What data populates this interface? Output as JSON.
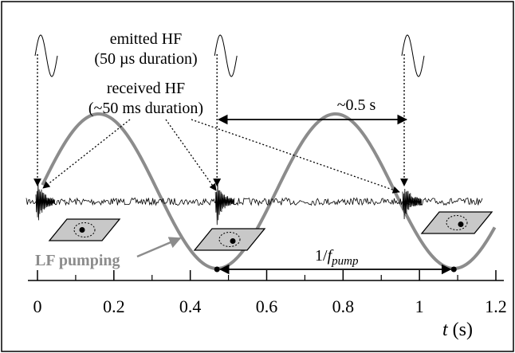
{
  "figure": {
    "emitted_label_line1": "emitted HF",
    "emitted_label_line2": "(50 µs duration)",
    "received_label_line1": "received HF",
    "received_label_line2": "(~50 ms duration)",
    "period_label": "~0.5 s",
    "pump_label": "LF pumping",
    "pump_period_prefix": "1/",
    "pump_period_f": "f",
    "pump_period_sub": "pump",
    "axis_var": "t",
    "axis_unit": " (s)"
  },
  "axis": {
    "x_min": 0,
    "x_max": 1.2,
    "ticks": [
      {
        "value": 0,
        "label": "0"
      },
      {
        "value": 0.2,
        "label": "0.2"
      },
      {
        "value": 0.4,
        "label": "0.4"
      },
      {
        "value": 0.6,
        "label": "0.6"
      },
      {
        "value": 0.8,
        "label": "0.8"
      },
      {
        "value": 1.0,
        "label": "1"
      },
      {
        "value": 1.2,
        "label": "1.2"
      }
    ]
  },
  "signal": {
    "hf_pulse_times": [
      0.0,
      0.47,
      0.96
    ],
    "pump_period": 0.62,
    "pump_peak_time": 0.16,
    "hf_interval": 0.5,
    "pump_minima_times": [
      0.47,
      1.09
    ]
  },
  "colors": {
    "pump_curve": "#8c8c8c",
    "signal": "#000000",
    "plate_fill": "#c8c8c8",
    "frame": "#000000"
  }
}
